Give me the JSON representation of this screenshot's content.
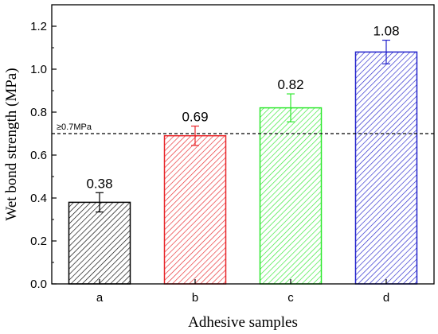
{
  "chart_data": {
    "type": "bar",
    "title": "",
    "xlabel": "Adhesive samples",
    "ylabel": "Wet bond strength (MPa)",
    "categories": [
      "a",
      "b",
      "c",
      "d"
    ],
    "values": [
      0.38,
      0.69,
      0.82,
      1.08
    ],
    "value_labels": [
      "0.38",
      "0.69",
      "0.82",
      "1.08"
    ],
    "errors": [
      0.045,
      0.045,
      0.065,
      0.055
    ],
    "bar_colors": [
      "#000000",
      "#e8262a",
      "#2ee82e",
      "#2222cc"
    ],
    "bar_fill": "diagonal-hatch",
    "ylim": [
      0,
      1.3
    ],
    "yticks": [
      0.0,
      0.2,
      0.4,
      0.6,
      0.8,
      1.0,
      1.2
    ],
    "ytick_labels": [
      "0.0",
      "0.2",
      "0.4",
      "0.6",
      "0.8",
      "1.0",
      "1.2"
    ],
    "reference_line": {
      "value": 0.7,
      "label": "≥0.7MPa",
      "style": "dashed",
      "color": "#000000"
    },
    "grid": false,
    "legend": "none"
  }
}
